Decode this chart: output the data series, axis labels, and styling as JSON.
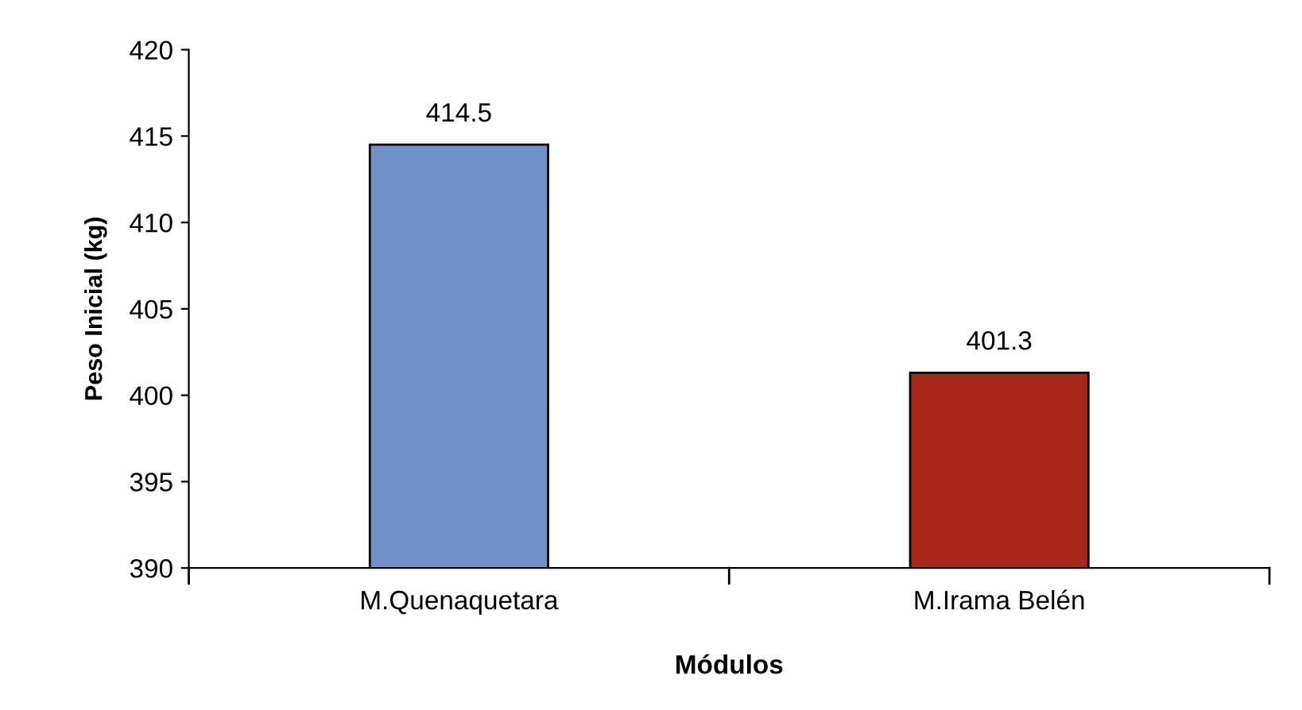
{
  "chart_data": {
    "type": "bar",
    "xlabel": "Módulos",
    "ylabel": "Peso Inicial (kg)",
    "categories": [
      "M.Quenaquetara",
      "M.Irama Belén"
    ],
    "values": [
      414.5,
      401.3
    ],
    "colors": [
      "#7291c9",
      "#a8281a"
    ],
    "ylim": [
      390,
      420
    ],
    "yticks": [
      390,
      395,
      400,
      405,
      410,
      415,
      420
    ],
    "data_labels": true,
    "grid": false,
    "legend": false
  }
}
